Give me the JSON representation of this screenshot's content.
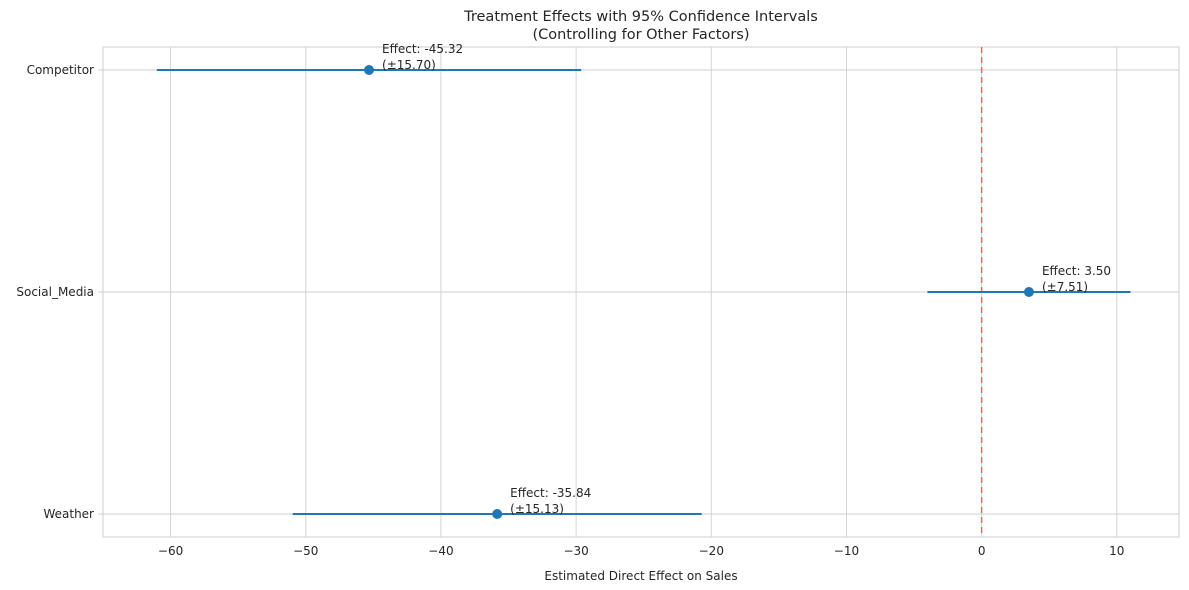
{
  "chart_data": {
    "type": "scatter",
    "title": "Treatment Effects with 95% Confidence Intervals",
    "subtitle": "(Controlling for Other Factors)",
    "xlabel": "Estimated Direct Effect on Sales",
    "ylabel": "",
    "xlim": [
      -65,
      14.6
    ],
    "x_ticks": [
      -60,
      -50,
      -40,
      -30,
      -20,
      -10,
      0,
      10
    ],
    "x_tick_labels": [
      "−60",
      "−50",
      "−40",
      "−30",
      "−20",
      "−10",
      "0",
      "10"
    ],
    "categories": [
      "Competitor",
      "Social_Media",
      "Weather"
    ],
    "points": [
      {
        "category": "Competitor",
        "effect": -45.32,
        "ci_half": 15.7,
        "line1": "Effect: -45.32",
        "line2": "(±15.70)"
      },
      {
        "category": "Social_Media",
        "effect": 3.5,
        "ci_half": 7.51,
        "line1": "Effect: 3.50",
        "line2": "(±7.51)"
      },
      {
        "category": "Weather",
        "effect": -35.84,
        "ci_half": 15.13,
        "line1": "Effect: -35.84",
        "line2": "(±15.13)"
      }
    ],
    "reference_line": {
      "x": 0,
      "style": "dashed",
      "color": "#ff5555"
    },
    "series_color": "#1f77b4",
    "grid": true
  }
}
